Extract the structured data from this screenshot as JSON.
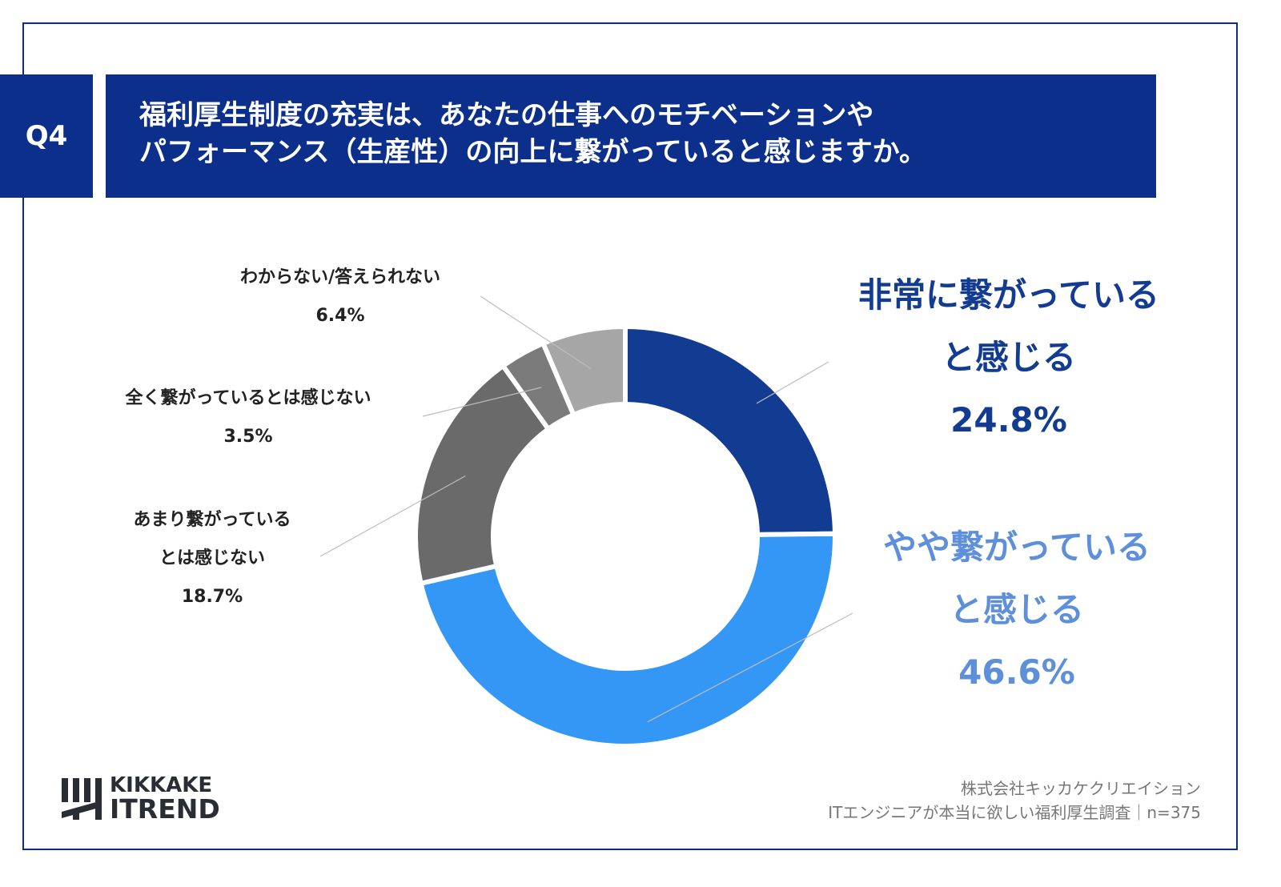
{
  "header": {
    "question_no": "Q4",
    "title_lines": [
      "福利厚生制度の充実は、あなたの仕事へのモチベーションや",
      "パフォーマンス（生産性）の向上に繋がっていると感じますか。"
    ]
  },
  "chart_data": {
    "type": "pie",
    "donut": true,
    "start": "top",
    "direction": "clockwise",
    "slices": [
      {
        "label_lines": [
          "非常に繋がっている",
          "と感じる"
        ],
        "value": 24.8,
        "value_label": "24.8%",
        "color": "#123b92",
        "label_color": "#123b92"
      },
      {
        "label_lines": [
          "やや繋がっている",
          "と感じる"
        ],
        "value": 46.6,
        "value_label": "46.6%",
        "color": "#3497f6",
        "label_color": "#5e8fdb"
      },
      {
        "label_lines": [
          "あまり繋がっている",
          "とは感じない"
        ],
        "value": 18.7,
        "value_label": "18.7%",
        "color": "#6a6a6a",
        "label_color": "#222222"
      },
      {
        "label_lines": [
          "全く繋がっているとは感じない"
        ],
        "value": 3.5,
        "value_label": "3.5%",
        "color": "#7b7b7b",
        "label_color": "#222222"
      },
      {
        "label_lines": [
          "わからない/答えられない"
        ],
        "value": 6.4,
        "value_label": "6.4%",
        "color": "#a6a6a6",
        "label_color": "#222222"
      }
    ]
  },
  "footer": {
    "logo_lines": [
      "KIKKAKE",
      "ITREND"
    ],
    "company": "株式会社キッカケクリエイション",
    "survey": "ITエンジニアが本当に欲しい福利厚生調査｜n=375"
  }
}
